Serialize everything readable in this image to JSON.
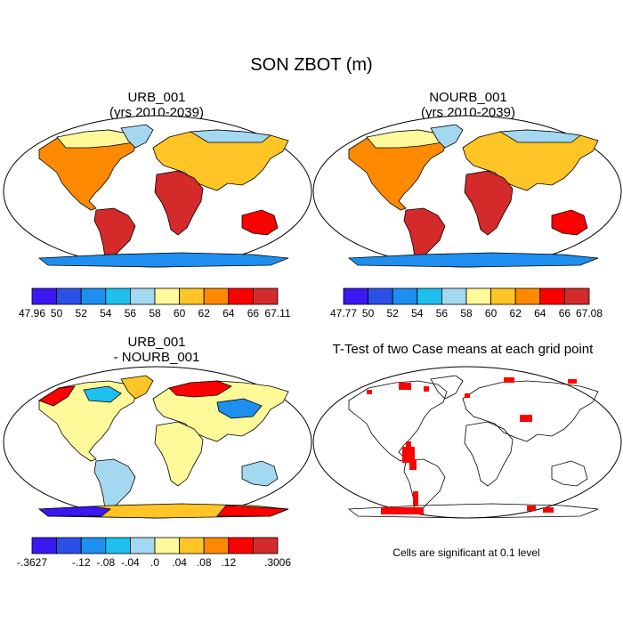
{
  "figure": {
    "title": "SON ZBOT (m)"
  },
  "panels": [
    {
      "title_line1": "URB_001",
      "title_line2": "(yrs 2010-2039)",
      "colorbar": {
        "colors": [
          "#3b17f2",
          "#2b50e6",
          "#1e8ef0",
          "#1ec0f0",
          "#a4d8f0",
          "#fff99a",
          "#ffc425",
          "#ff8a00",
          "#ff0000",
          "#d42a2a"
        ],
        "labels": [
          "47.96",
          "50",
          "52",
          "54",
          "56",
          "58",
          "60",
          "62",
          "64",
          "66",
          "67.11"
        ]
      }
    },
    {
      "title_line1": "NOURB_001",
      "title_line2": "(yrs 2010-2039)",
      "colorbar": {
        "colors": [
          "#3b17f2",
          "#2b50e6",
          "#1e8ef0",
          "#1ec0f0",
          "#a4d8f0",
          "#fff99a",
          "#ffc425",
          "#ff8a00",
          "#ff0000",
          "#d42a2a"
        ],
        "labels": [
          "47.77",
          "50",
          "52",
          "54",
          "56",
          "58",
          "60",
          "62",
          "64",
          "66",
          "67.08"
        ]
      }
    },
    {
      "title_line1": "URB_001",
      "title_line2": "- NOURB_001",
      "colorbar": {
        "colors": [
          "#3b17f2",
          "#2b50e6",
          "#1e8ef0",
          "#1ec0f0",
          "#a4d8f0",
          "#fff99a",
          "#ffc425",
          "#ff8a00",
          "#ff0000",
          "#d42a2a"
        ],
        "labels": [
          "-.3627",
          "",
          "-.12",
          "-.08",
          "-.04",
          ".0",
          ".04",
          ".08",
          ".12",
          "",
          ".3006"
        ]
      }
    },
    {
      "title_line1": "T-Test of two Case means at each grid point",
      "note": "Cells are significant at 0.1 level"
    }
  ]
}
